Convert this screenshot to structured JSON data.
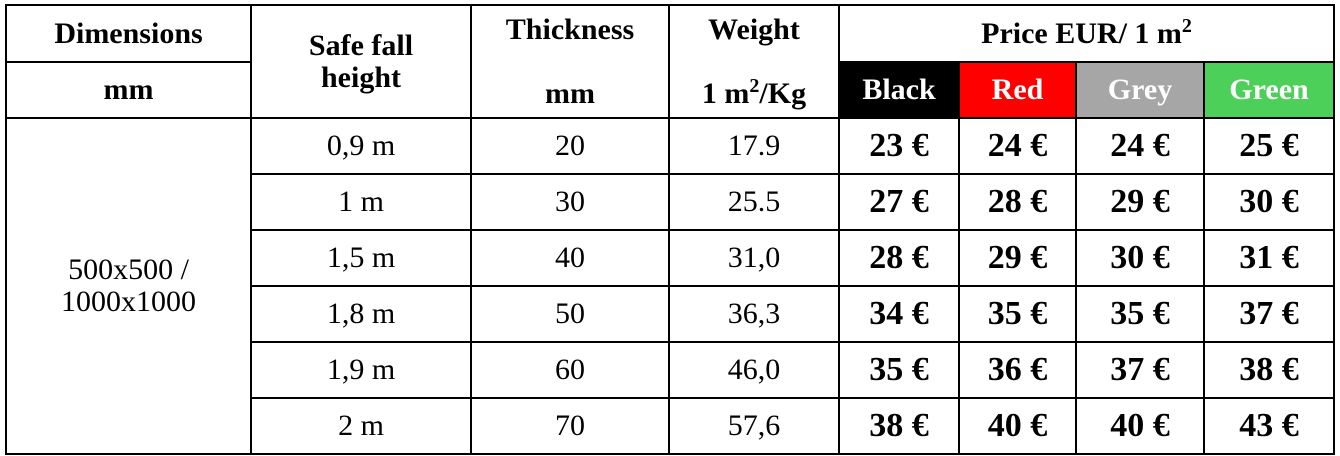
{
  "header": {
    "dimensions": [
      "Dimensions",
      "mm"
    ],
    "safe_fall_height": [
      "Safe fall",
      "height"
    ],
    "thickness": [
      "Thickness",
      "mm"
    ],
    "weight": {
      "title": "Weight",
      "unit": [
        "1 m",
        "2",
        "/Kg"
      ]
    },
    "price": [
      "Price EUR/ 1 m",
      "2"
    ],
    "colors": [
      "Black",
      "Red",
      "Grey",
      "Green"
    ]
  },
  "table": {
    "dimensions": [
      "500x500 /",
      "1000x1000"
    ],
    "rows": [
      [
        "0,9 m",
        "20",
        "17.9",
        "23 €",
        "24 €",
        "24 €",
        "25 €"
      ],
      [
        "1 m",
        "30",
        "25.5",
        "27 €",
        "28 €",
        "29 €",
        "30 €"
      ],
      [
        "1,5 m",
        "40",
        "31,0",
        "28 €",
        "29 €",
        "30 €",
        "31 €"
      ],
      [
        "1,8 m",
        "50",
        "36,3",
        "34 €",
        "35 €",
        "35 €",
        "37 €"
      ],
      [
        "1,9 m",
        "60",
        "46,0",
        "35 €",
        "36 €",
        "37 €",
        "38 €"
      ],
      [
        "2 m",
        "70",
        "57,6",
        "38 €",
        "40 €",
        "40 €",
        "43 €"
      ]
    ]
  }
}
